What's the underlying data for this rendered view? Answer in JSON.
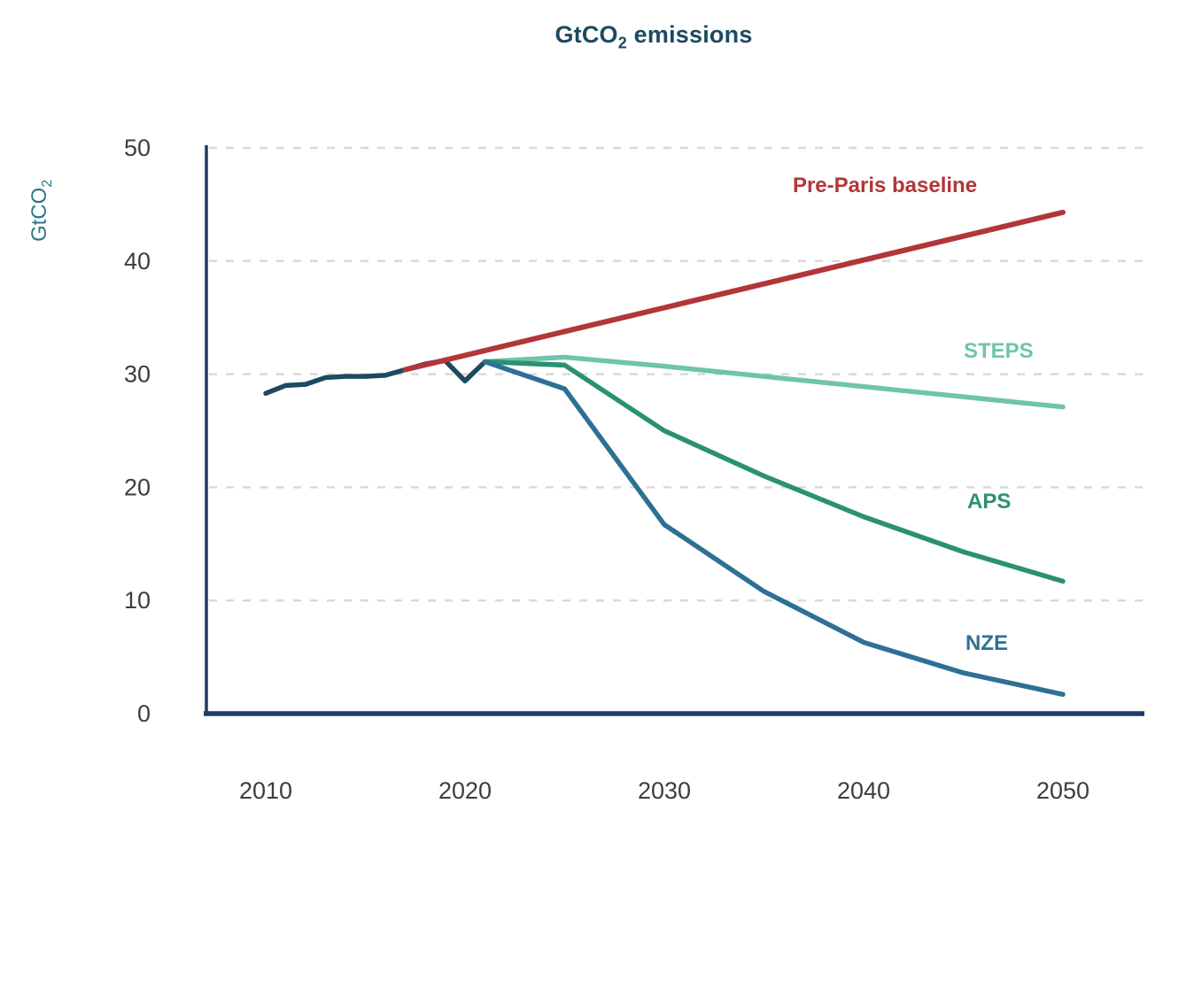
{
  "title": {
    "prefix": "GtCO",
    "sub": "2",
    "suffix": " emissions",
    "color": "#1c4a60"
  },
  "y_axis": {
    "label_prefix": "GtCO",
    "label_sub": "2",
    "label_color": "#2e7589",
    "ticks": [
      0,
      10,
      20,
      30,
      40,
      50
    ],
    "gridlines": [
      10,
      20,
      30,
      40,
      50
    ],
    "tick_color": "#3d3d3d"
  },
  "x_axis": {
    "ticks": [
      2010,
      2020,
      2030,
      2040,
      2050
    ],
    "tick_color": "#3d3d3d"
  },
  "style_colors": {
    "axis_line": "#1e3c64",
    "gridline": "#d9d9d9",
    "background": "#ffffff"
  },
  "chart_data": {
    "type": "line",
    "title": "GtCO2 emissions",
    "ylabel": "GtCO2",
    "xlabel": "",
    "xlim": [
      2007,
      2054
    ],
    "ylim": [
      0,
      50
    ],
    "grid": "horizontal dashed",
    "legend_position": "direct labels at line ends",
    "series": [
      {
        "name": "historical-emissions",
        "label": "",
        "color": "#1c4a5e",
        "width": 5.5,
        "x": [
          2010,
          2011,
          2012,
          2013,
          2014,
          2015,
          2016,
          2017,
          2018,
          2019,
          2020,
          2021
        ],
        "values": [
          28.3,
          29.0,
          29.1,
          29.7,
          29.8,
          29.8,
          29.9,
          30.4,
          30.9,
          31.2,
          29.4,
          31.1
        ]
      },
      {
        "name": "pre-paris-baseline",
        "label": "Pre-Paris baseline",
        "color": "#b23639",
        "width": 6,
        "x": [
          2017,
          2050
        ],
        "values": [
          30.4,
          44.3
        ]
      },
      {
        "name": "steps",
        "label": "STEPS",
        "color": "#6fc4ab",
        "width": 5.5,
        "x": [
          2021,
          2025,
          2030,
          2035,
          2040,
          2045,
          2050
        ],
        "values": [
          31.1,
          31.5,
          30.7,
          29.8,
          28.9,
          28.0,
          27.1
        ]
      },
      {
        "name": "aps",
        "label": "APS",
        "color": "#2a9173",
        "width": 5.5,
        "x": [
          2021,
          2025,
          2030,
          2035,
          2040,
          2045,
          2050
        ],
        "values": [
          31.1,
          30.8,
          25.0,
          21.0,
          17.4,
          14.3,
          11.7
        ]
      },
      {
        "name": "nze",
        "label": "NZE",
        "color": "#2e7095",
        "width": 5.5,
        "x": [
          2021,
          2025,
          2030,
          2035,
          2040,
          2045,
          2050
        ],
        "values": [
          31.1,
          28.7,
          16.7,
          10.8,
          6.3,
          3.6,
          1.7
        ]
      }
    ]
  }
}
